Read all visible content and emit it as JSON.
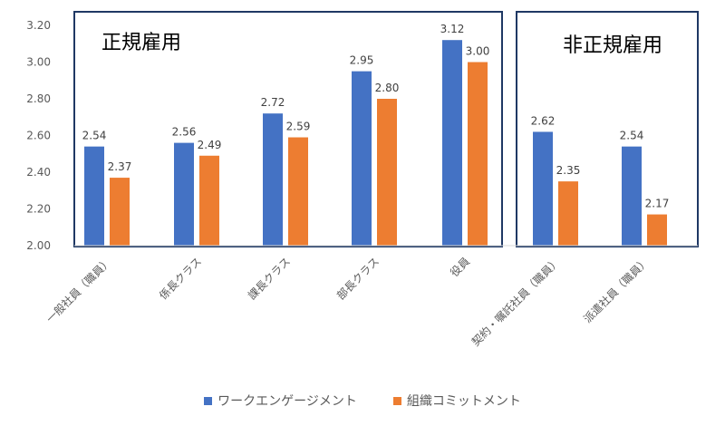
{
  "chart_data": {
    "type": "bar",
    "title": "",
    "xlabel": "",
    "ylabel": "",
    "ylim": [
      2.0,
      3.2
    ],
    "yticks": [
      "2.00",
      "2.20",
      "2.40",
      "2.60",
      "2.80",
      "3.00",
      "3.20"
    ],
    "categories": [
      "一般社員（職員）",
      "係長クラス",
      "課長クラス",
      "部長クラス",
      "役員",
      "契約・嘱託社員（職員）",
      "派遣社員（職員）"
    ],
    "groups": [
      {
        "label": "正規雇用",
        "categories": [
          "一般社員（職員）",
          "係長クラス",
          "課長クラス",
          "部長クラス",
          "役員"
        ]
      },
      {
        "label": "非正規雇用",
        "categories": [
          "契約・嘱託社員（職員）",
          "派遣社員（職員）"
        ]
      }
    ],
    "series": [
      {
        "name": "ワークエンゲージメント",
        "color": "#4472C4",
        "values": [
          2.54,
          2.56,
          2.72,
          2.95,
          3.12,
          2.62,
          2.54
        ]
      },
      {
        "name": "組織コミットメント",
        "color": "#ED7D31",
        "values": [
          2.37,
          2.49,
          2.59,
          2.8,
          3.0,
          2.35,
          2.17
        ]
      }
    ],
    "data_labels": [
      [
        "2.54",
        "2.56",
        "2.72",
        "2.95",
        "3.12",
        "2.62",
        "2.54"
      ],
      [
        "2.37",
        "2.49",
        "2.59",
        "2.80",
        "3.00",
        "2.35",
        "2.17"
      ]
    ],
    "legend_position": "bottom",
    "grid": false,
    "box_color": "#1F3864"
  }
}
